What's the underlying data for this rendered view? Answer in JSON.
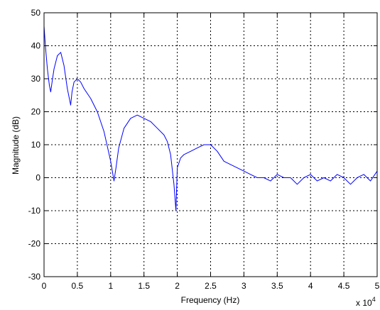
{
  "chart_data": {
    "type": "line",
    "title": "",
    "xlabel": "Frequency (Hz)",
    "ylabel": "Magnitude (dB)",
    "x_multiplier_label": "x 10",
    "x_multiplier_exponent": "4",
    "xlim": [
      0,
      5
    ],
    "ylim": [
      -30,
      50
    ],
    "x_ticks": [
      0,
      0.5,
      1,
      1.5,
      2,
      2.5,
      3,
      3.5,
      4,
      4.5,
      5
    ],
    "x_tick_labels": [
      "0",
      "0.5",
      "1",
      "1.5",
      "2",
      "2.5",
      "3",
      "3.5",
      "4",
      "4.5",
      "5"
    ],
    "y_ticks": [
      -30,
      -20,
      -10,
      0,
      10,
      20,
      30,
      40,
      50
    ],
    "y_tick_labels": [
      "-30",
      "-20",
      "-10",
      "0",
      "10",
      "20",
      "30",
      "40",
      "50"
    ],
    "grid": true,
    "series": [
      {
        "color": "#0000ff",
        "x": [
          0,
          0.02,
          0.05,
          0.08,
          0.1,
          0.12,
          0.15,
          0.2,
          0.25,
          0.3,
          0.35,
          0.4,
          0.42,
          0.45,
          0.5,
          0.55,
          0.6,
          0.7,
          0.8,
          0.9,
          1.0,
          1.05,
          1.08,
          1.12,
          1.2,
          1.3,
          1.4,
          1.5,
          1.6,
          1.7,
          1.8,
          1.85,
          1.9,
          1.95,
          1.98,
          2.0,
          2.05,
          2.1,
          2.2,
          2.3,
          2.4,
          2.5,
          2.6,
          2.7,
          2.8,
          2.9,
          3.0,
          3.1,
          3.2,
          3.3,
          3.4,
          3.5,
          3.6,
          3.7,
          3.8,
          3.9,
          4.0,
          4.1,
          4.2,
          4.3,
          4.4,
          4.5,
          4.6,
          4.7,
          4.8,
          4.9,
          5.0
        ],
        "y": [
          46,
          40,
          33,
          28,
          26,
          29,
          33,
          37,
          38,
          34,
          27,
          22,
          26,
          29,
          30,
          29,
          27,
          24,
          20,
          14,
          5,
          -1,
          3,
          9,
          15,
          18,
          19,
          18,
          17,
          15,
          13,
          11,
          7,
          -2,
          -10,
          3,
          6,
          7,
          8,
          9,
          10,
          10,
          8,
          5,
          4,
          3,
          2,
          1,
          0,
          0,
          -1,
          1,
          0,
          0,
          -2,
          0,
          1,
          -1,
          0,
          -1,
          1,
          0,
          -2,
          0,
          1,
          -1,
          2
        ]
      }
    ]
  }
}
